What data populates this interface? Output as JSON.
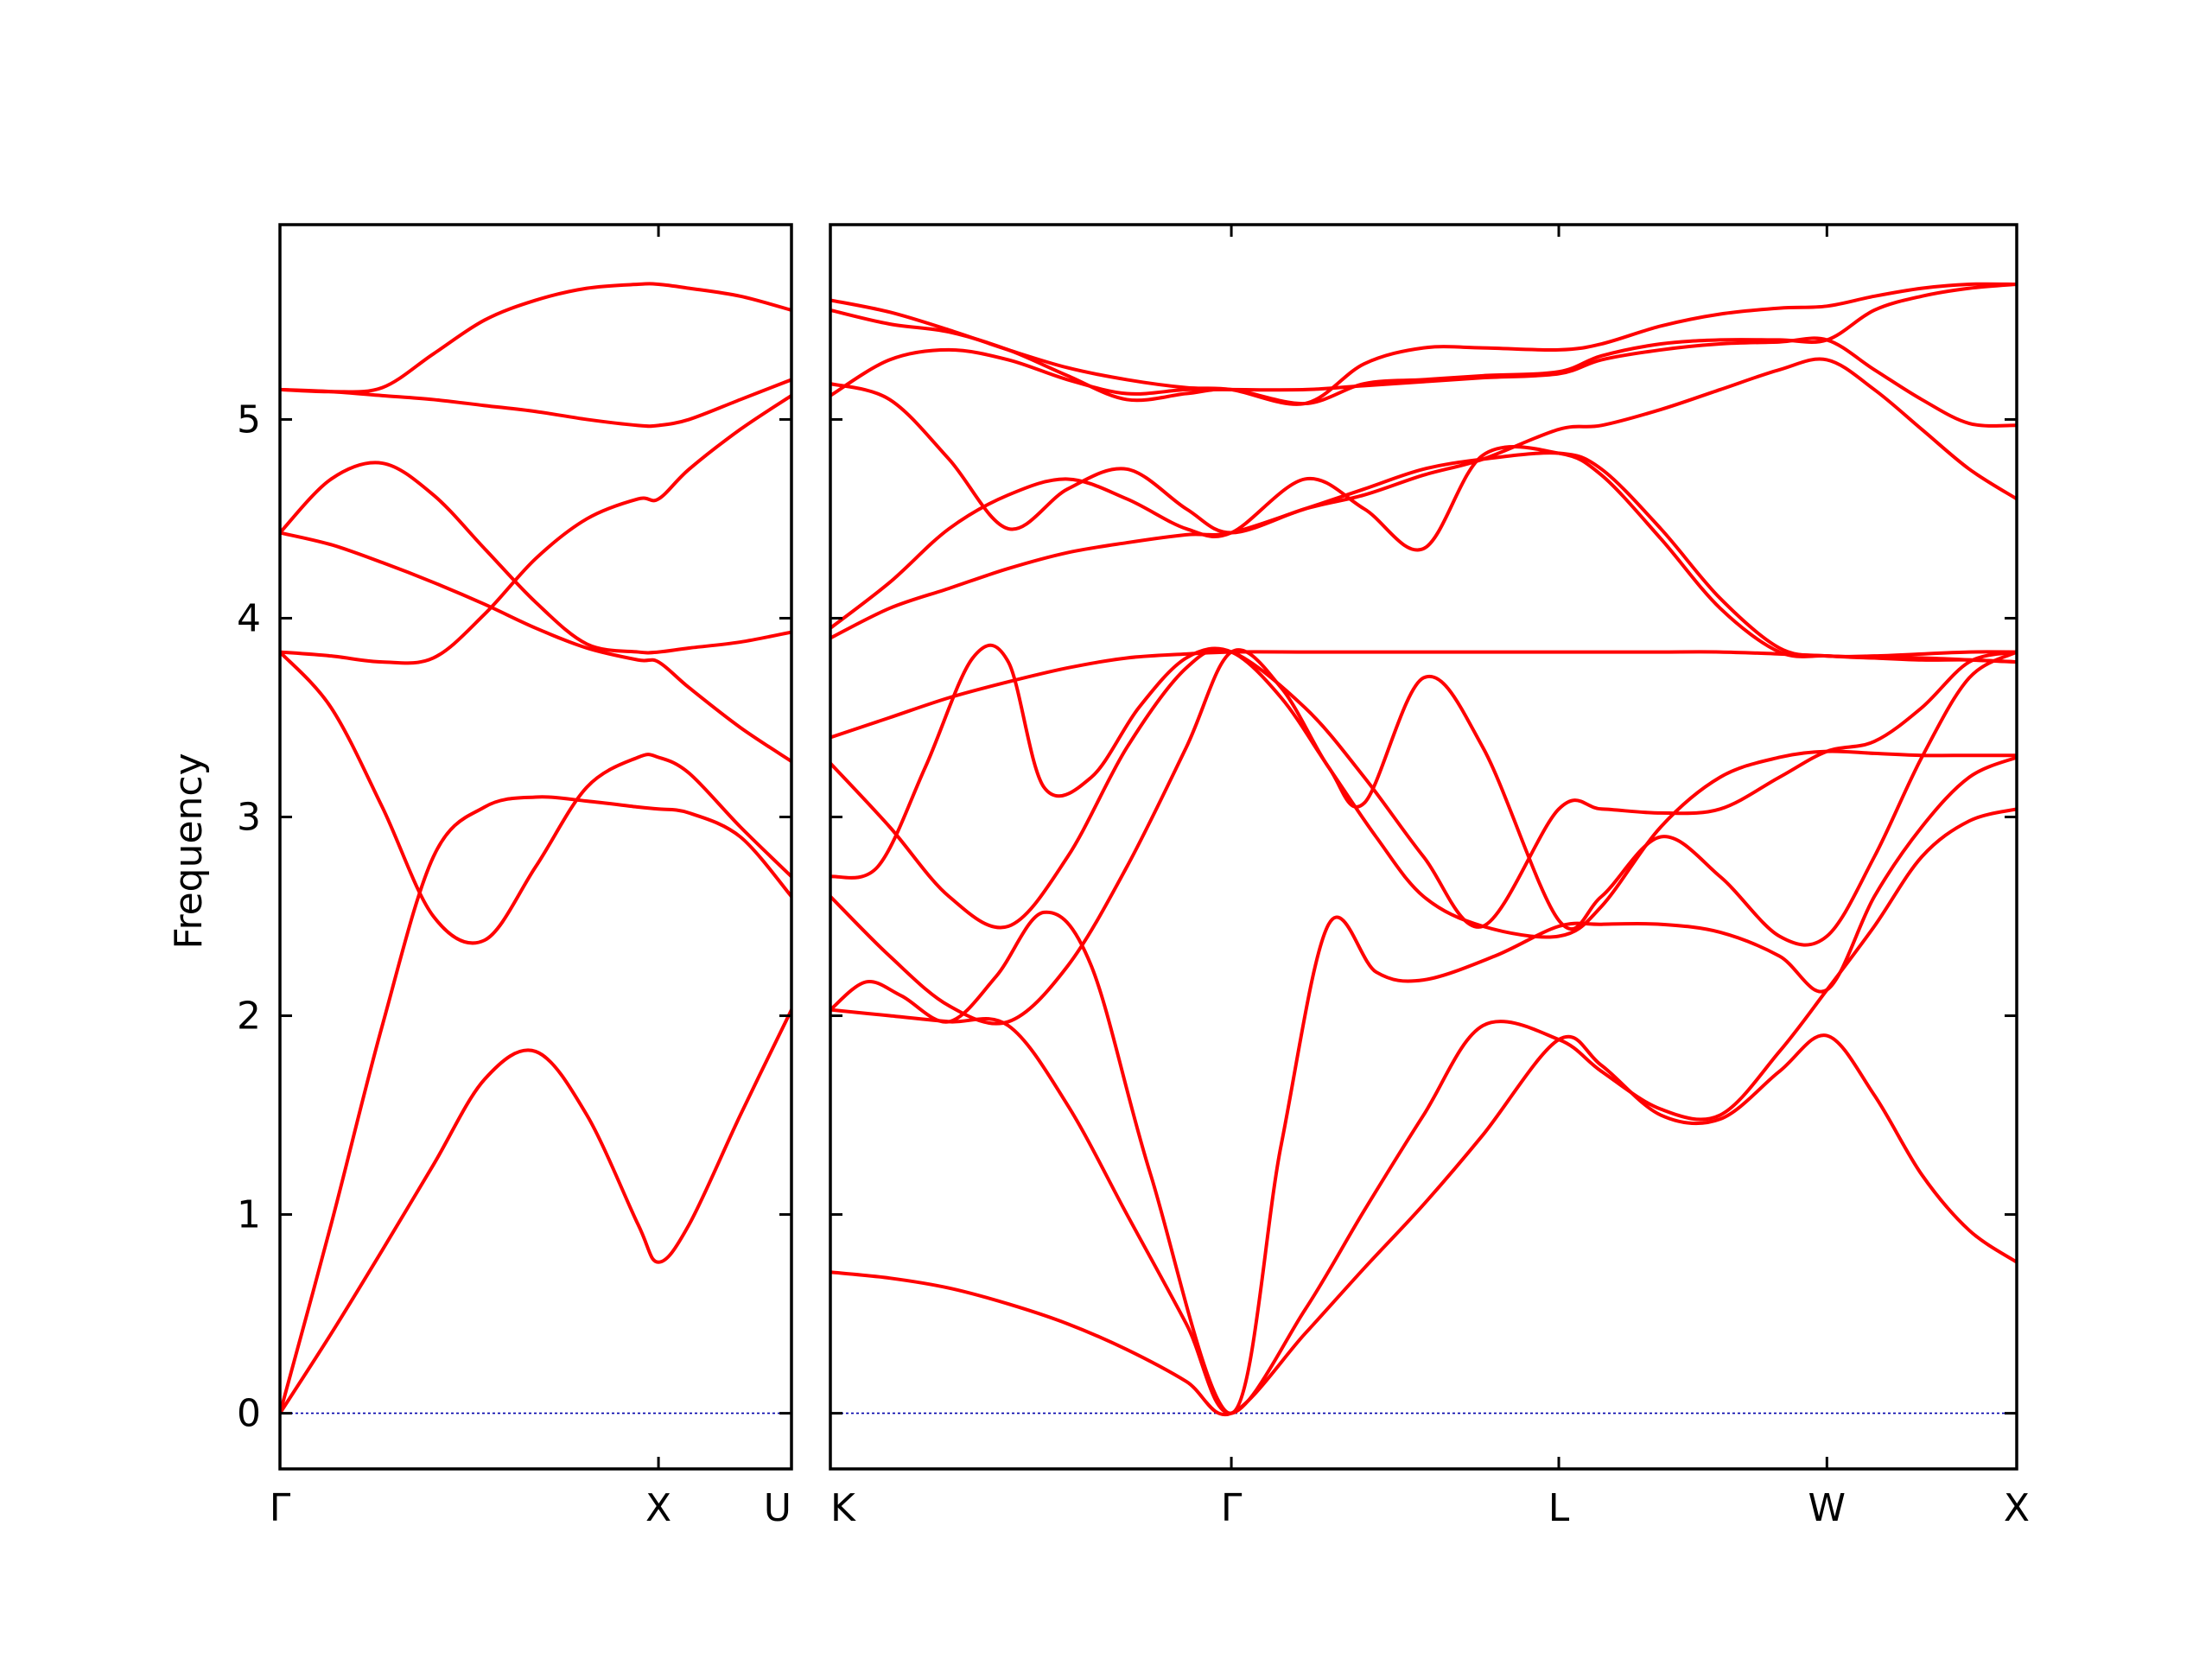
{
  "chart_data": {
    "type": "line",
    "title": "",
    "ylabel": "Frequency",
    "xlabel": "",
    "ylim": [
      -0.28,
      5.98
    ],
    "yticks": [
      0,
      1,
      2,
      3,
      4,
      5
    ],
    "colors": {
      "bands": "#ff0000",
      "zero_line": "#0000aa",
      "frame": "#000000"
    },
    "panels": [
      {
        "x_range": [
          0,
          1.0
        ],
        "high_symmetry_points": [
          {
            "label": "Γ",
            "x": 0.0
          },
          {
            "label": "X",
            "x": 0.74
          },
          {
            "label": "U",
            "x": 1.0
          }
        ],
        "bands": [
          {
            "name": "band-1",
            "x": [
              0,
              0.1,
              0.2,
              0.3,
              0.4,
              0.5,
              0.6,
              0.7,
              0.74,
              0.8,
              0.9,
              1.0
            ],
            "y": [
              0,
              0.4,
              0.82,
              1.25,
              1.68,
              1.82,
              1.5,
              0.95,
              0.76,
              0.95,
              1.5,
              2.03
            ]
          },
          {
            "name": "band-2",
            "x": [
              0,
              0.1,
              0.2,
              0.3,
              0.4,
              0.5,
              0.6,
              0.7,
              0.74,
              0.8,
              0.9,
              1.0
            ],
            "y": [
              0,
              0.95,
              1.95,
              2.8,
              3.05,
              3.1,
              3.08,
              3.05,
              3.04,
              3.02,
              2.9,
              2.6
            ]
          },
          {
            "name": "band-3",
            "x": [
              0,
              0.1,
              0.2,
              0.3,
              0.4,
              0.5,
              0.6,
              0.7,
              0.74,
              0.8,
              0.9,
              1.0
            ],
            "y": [
              3.83,
              3.55,
              3.05,
              2.5,
              2.38,
              2.75,
              3.15,
              3.3,
              3.3,
              3.22,
              2.95,
              2.7
            ]
          },
          {
            "name": "band-4",
            "x": [
              0,
              0.1,
              0.2,
              0.3,
              0.4,
              0.5,
              0.6,
              0.7,
              0.74,
              0.8,
              0.9,
              1.0
            ],
            "y": [
              3.83,
              3.81,
              3.78,
              3.8,
              4.02,
              4.3,
              4.5,
              4.6,
              4.6,
              4.75,
              4.95,
              5.12
            ]
          },
          {
            "name": "band-5",
            "x": [
              0,
              0.1,
              0.2,
              0.3,
              0.4,
              0.5,
              0.6,
              0.7,
              0.74,
              0.8,
              0.9,
              1.0
            ],
            "y": [
              4.43,
              4.37,
              4.28,
              4.18,
              4.07,
              3.95,
              3.85,
              3.79,
              3.78,
              3.65,
              3.45,
              3.28
            ]
          },
          {
            "name": "band-6",
            "x": [
              0,
              0.1,
              0.2,
              0.3,
              0.4,
              0.5,
              0.6,
              0.7,
              0.74,
              0.8,
              0.9,
              1.0
            ],
            "y": [
              4.43,
              4.7,
              4.78,
              4.62,
              4.35,
              4.08,
              3.87,
              3.83,
              3.83,
              3.85,
              3.88,
              3.93
            ]
          },
          {
            "name": "band-7",
            "x": [
              0,
              0.1,
              0.2,
              0.3,
              0.4,
              0.5,
              0.6,
              0.7,
              0.74,
              0.8,
              0.9,
              1.0
            ],
            "y": [
              5.15,
              5.14,
              5.12,
              5.1,
              5.07,
              5.04,
              5.0,
              4.97,
              4.97,
              5.0,
              5.1,
              5.2
            ]
          },
          {
            "name": "band-8",
            "x": [
              0,
              0.1,
              0.2,
              0.3,
              0.4,
              0.5,
              0.6,
              0.7,
              0.74,
              0.8,
              0.9,
              1.0
            ],
            "y": [
              5.15,
              5.14,
              5.16,
              5.33,
              5.5,
              5.6,
              5.66,
              5.68,
              5.68,
              5.66,
              5.62,
              5.55
            ]
          }
        ]
      },
      {
        "x_range": [
          0,
          1.0
        ],
        "high_symmetry_points": [
          {
            "label": "K",
            "x": 0.0
          },
          {
            "label": "Γ",
            "x": 0.338
          },
          {
            "label": "L",
            "x": 0.614
          },
          {
            "label": "W",
            "x": 0.84
          },
          {
            "label": "X",
            "x": 1.0
          }
        ],
        "bands": [
          {
            "name": "band-1",
            "x": [
              0,
              0.05,
              0.1,
              0.15,
              0.2,
              0.25,
              0.3,
              0.338,
              0.4,
              0.45,
              0.5,
              0.55,
              0.614,
              0.65,
              0.7,
              0.75,
              0.8,
              0.84,
              0.88,
              0.92,
              0.96,
              1.0
            ],
            "y": [
              0.71,
              0.68,
              0.63,
              0.55,
              0.45,
              0.32,
              0.16,
              0.0,
              0.4,
              0.73,
              1.05,
              1.4,
              1.88,
              1.75,
              1.5,
              1.48,
              1.72,
              1.9,
              1.6,
              1.2,
              0.92,
              0.76
            ]
          },
          {
            "name": "band-2",
            "x": [
              0,
              0.05,
              0.1,
              0.15,
              0.2,
              0.25,
              0.3,
              0.338,
              0.4,
              0.45,
              0.5,
              0.55,
              0.614,
              0.65,
              0.7,
              0.75,
              0.8,
              0.84,
              0.88,
              0.92,
              0.96,
              1.0
            ],
            "y": [
              2.03,
              2.0,
              1.97,
              1.95,
              1.55,
              1.0,
              0.45,
              0.0,
              0.52,
              1.02,
              1.5,
              1.95,
              1.88,
              1.72,
              1.53,
              1.5,
              1.82,
              2.13,
              2.45,
              2.8,
              2.98,
              3.04
            ]
          },
          {
            "name": "band-3",
            "x": [
              0,
              0.03,
              0.06,
              0.1,
              0.14,
              0.18,
              0.22,
              0.27,
              0.338,
              0.38,
              0.42,
              0.46,
              0.5,
              0.56,
              0.614,
              0.65,
              0.7,
              0.75,
              0.8,
              0.84,
              0.88,
              0.92,
              0.96,
              1.0
            ],
            "y": [
              2.03,
              2.17,
              2.1,
              1.97,
              2.2,
              2.52,
              2.25,
              1.2,
              0.0,
              1.35,
              2.46,
              2.22,
              2.18,
              2.3,
              2.45,
              2.46,
              2.46,
              2.42,
              2.3,
              2.13,
              2.6,
              2.95,
              3.2,
              3.3
            ]
          },
          {
            "name": "band-4",
            "x": [
              0,
              0.05,
              0.1,
              0.15,
              0.2,
              0.25,
              0.3,
              0.338,
              0.38,
              0.42,
              0.45,
              0.5,
              0.55,
              0.614,
              0.65,
              0.7,
              0.75,
              0.8,
              0.84,
              0.88,
              0.92,
              0.96,
              1.0
            ],
            "y": [
              2.6,
              2.3,
              2.05,
              1.97,
              2.25,
              2.75,
              3.35,
              3.83,
              3.65,
              3.25,
              3.07,
              3.7,
              3.35,
              2.48,
              2.6,
              2.9,
              2.7,
              2.4,
              2.4,
              2.8,
              3.3,
              3.7,
              3.83
            ]
          },
          {
            "name": "band-5",
            "x": [
              0,
              0.04,
              0.08,
              0.12,
              0.15,
              0.18,
              0.22,
              0.26,
              0.3,
              0.338,
              0.38,
              0.42,
              0.46,
              0.5,
              0.55,
              0.614,
              0.65,
              0.7,
              0.75,
              0.8,
              0.84,
              0.88,
              0.92,
              0.96,
              1.0
            ],
            "y": [
              2.7,
              2.75,
              3.25,
              3.8,
              3.78,
              3.15,
              3.2,
              3.55,
              3.8,
              3.83,
              3.6,
              3.25,
              2.9,
              2.6,
              2.45,
              2.4,
              2.55,
              2.95,
              3.2,
              3.3,
              3.33,
              3.32,
              3.31,
              3.31,
              3.31
            ]
          },
          {
            "name": "band-6",
            "x": [
              0,
              0.05,
              0.1,
              0.15,
              0.2,
              0.25,
              0.3,
              0.338,
              0.4,
              0.45,
              0.5,
              0.55,
              0.614,
              0.65,
              0.7,
              0.75,
              0.8,
              0.84,
              0.88,
              0.92,
              0.96,
              1.0
            ],
            "y": [
              3.27,
              2.95,
              2.6,
              2.45,
              2.8,
              3.35,
              3.75,
              3.83,
              3.55,
              3.2,
              2.8,
              2.45,
              3.04,
              3.04,
              3.02,
              3.04,
              3.2,
              3.33,
              3.38,
              3.55,
              3.78,
              3.83
            ]
          },
          {
            "name": "band-7",
            "x": [
              0,
              0.05,
              0.1,
              0.15,
              0.2,
              0.25,
              0.3,
              0.338,
              0.4,
              0.45,
              0.5,
              0.55,
              0.614,
              0.65,
              0.7,
              0.75,
              0.8,
              0.84,
              0.88,
              0.92,
              0.96,
              1.0
            ],
            "y": [
              3.4,
              3.5,
              3.6,
              3.68,
              3.75,
              3.8,
              3.82,
              3.83,
              3.83,
              3.83,
              3.83,
              3.83,
              3.83,
              3.83,
              3.83,
              3.83,
              3.82,
              3.81,
              3.8,
              3.79,
              3.79,
              3.78
            ]
          },
          {
            "name": "band-8",
            "x": [
              0,
              0.05,
              0.1,
              0.15,
              0.2,
              0.25,
              0.3,
              0.338,
              0.4,
              0.45,
              0.5,
              0.55,
              0.614,
              0.65,
              0.7,
              0.75,
              0.8,
              0.84,
              0.88,
              0.92,
              0.96,
              1.0
            ],
            "y": [
              3.9,
              4.05,
              4.15,
              4.25,
              4.33,
              4.38,
              4.42,
              4.43,
              4.55,
              4.65,
              4.75,
              4.8,
              4.83,
              4.75,
              4.45,
              4.1,
              3.85,
              3.81,
              3.81,
              3.82,
              3.83,
              3.83
            ]
          },
          {
            "name": "band-9",
            "x": [
              0,
              0.05,
              0.1,
              0.15,
              0.2,
              0.25,
              0.3,
              0.338,
              0.4,
              0.45,
              0.5,
              0.55,
              0.614,
              0.65,
              0.7,
              0.75,
              0.8,
              0.84,
              0.88,
              0.92,
              0.96,
              1.0
            ],
            "y": [
              3.95,
              4.18,
              4.45,
              4.62,
              4.7,
              4.6,
              4.45,
              4.43,
              4.7,
              4.55,
              4.35,
              4.82,
              4.83,
              4.72,
              4.4,
              4.05,
              3.83,
              3.81,
              3.8,
              3.8,
              3.79,
              3.78
            ]
          },
          {
            "name": "band-10",
            "x": [
              0,
              0.05,
              0.1,
              0.15,
              0.2,
              0.25,
              0.3,
              0.338,
              0.4,
              0.45,
              0.5,
              0.55,
              0.614,
              0.65,
              0.7,
              0.75,
              0.8,
              0.84,
              0.88,
              0.92,
              0.96,
              1.0
            ],
            "y": [
              5.18,
              5.1,
              4.8,
              4.45,
              4.65,
              4.75,
              4.55,
              4.43,
              4.55,
              4.62,
              4.72,
              4.8,
              4.95,
              4.97,
              5.05,
              5.15,
              5.25,
              5.3,
              5.15,
              4.95,
              4.75,
              4.6
            ]
          },
          {
            "name": "band-11",
            "x": [
              0,
              0.05,
              0.1,
              0.15,
              0.2,
              0.25,
              0.3,
              0.338,
              0.4,
              0.45,
              0.5,
              0.55,
              0.614,
              0.65,
              0.7,
              0.75,
              0.8,
              0.84,
              0.88,
              0.92,
              0.96,
              1.0
            ],
            "y": [
              5.12,
              5.3,
              5.35,
              5.3,
              5.2,
              5.13,
              5.15,
              5.15,
              5.15,
              5.17,
              5.19,
              5.21,
              5.23,
              5.3,
              5.35,
              5.38,
              5.39,
              5.4,
              5.25,
              5.1,
              4.98,
              4.97
            ]
          },
          {
            "name": "band-12",
            "x": [
              0,
              0.05,
              0.1,
              0.15,
              0.2,
              0.25,
              0.3,
              0.338,
              0.4,
              0.45,
              0.5,
              0.55,
              0.614,
              0.65,
              0.7,
              0.75,
              0.8,
              0.84,
              0.88,
              0.92,
              0.96,
              1.0
            ],
            "y": [
              5.55,
              5.48,
              5.44,
              5.35,
              5.22,
              5.1,
              5.13,
              5.15,
              5.08,
              5.18,
              5.2,
              5.22,
              5.24,
              5.32,
              5.38,
              5.4,
              5.4,
              5.4,
              5.55,
              5.62,
              5.66,
              5.68
            ]
          },
          {
            "name": "band-13",
            "x": [
              0,
              0.05,
              0.1,
              0.15,
              0.2,
              0.25,
              0.3,
              0.338,
              0.4,
              0.45,
              0.5,
              0.55,
              0.614,
              0.65,
              0.7,
              0.75,
              0.8,
              0.84,
              0.88,
              0.92,
              0.96,
              1.0
            ],
            "y": [
              5.6,
              5.54,
              5.45,
              5.35,
              5.26,
              5.2,
              5.16,
              5.15,
              5.08,
              5.28,
              5.36,
              5.36,
              5.35,
              5.38,
              5.47,
              5.53,
              5.56,
              5.57,
              5.62,
              5.66,
              5.68,
              5.68
            ]
          }
        ]
      }
    ]
  }
}
